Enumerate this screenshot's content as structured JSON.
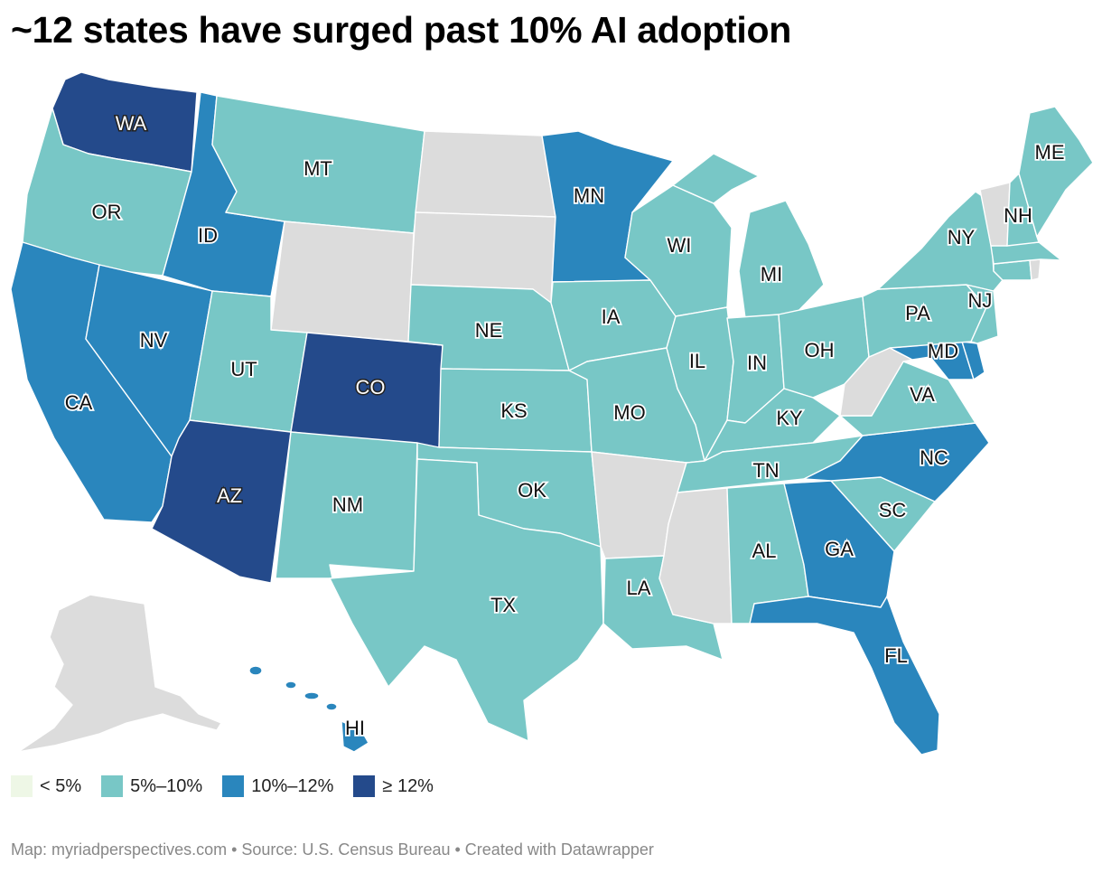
{
  "title": "~12 states have surged past 10% AI adoption",
  "colors": {
    "lt5": "#eef7e6",
    "b5_10": "#78c7c6",
    "b10_12": "#2a86bd",
    "ge12": "#244a8b",
    "nodata": "#dcdcdc"
  },
  "legend": [
    {
      "label": "< 5%",
      "color": "#eef7e6"
    },
    {
      "label": "5%–10%",
      "color": "#78c7c6"
    },
    {
      "label": "10%–12%",
      "color": "#2a86bd"
    },
    {
      "label": "≥ 12%",
      "color": "#244a8b"
    }
  ],
  "states": [
    {
      "abbr": "WA",
      "bin": "ge12"
    },
    {
      "abbr": "OR",
      "bin": "b5_10"
    },
    {
      "abbr": "CA",
      "bin": "b10_12"
    },
    {
      "abbr": "NV",
      "bin": "b10_12"
    },
    {
      "abbr": "ID",
      "bin": "b10_12"
    },
    {
      "abbr": "MT",
      "bin": "b5_10"
    },
    {
      "abbr": "WY",
      "bin": "nodata"
    },
    {
      "abbr": "UT",
      "bin": "b5_10"
    },
    {
      "abbr": "AZ",
      "bin": "ge12"
    },
    {
      "abbr": "CO",
      "bin": "ge12"
    },
    {
      "abbr": "NM",
      "bin": "b5_10"
    },
    {
      "abbr": "ND",
      "bin": "nodata"
    },
    {
      "abbr": "SD",
      "bin": "nodata"
    },
    {
      "abbr": "NE",
      "bin": "b5_10"
    },
    {
      "abbr": "KS",
      "bin": "b5_10"
    },
    {
      "abbr": "OK",
      "bin": "b5_10"
    },
    {
      "abbr": "TX",
      "bin": "b5_10"
    },
    {
      "abbr": "MN",
      "bin": "b10_12"
    },
    {
      "abbr": "IA",
      "bin": "b5_10"
    },
    {
      "abbr": "MO",
      "bin": "b5_10"
    },
    {
      "abbr": "AR",
      "bin": "nodata"
    },
    {
      "abbr": "LA",
      "bin": "b5_10"
    },
    {
      "abbr": "WI",
      "bin": "b5_10"
    },
    {
      "abbr": "IL",
      "bin": "b5_10"
    },
    {
      "abbr": "MI",
      "bin": "b5_10"
    },
    {
      "abbr": "IN",
      "bin": "b5_10"
    },
    {
      "abbr": "OH",
      "bin": "b5_10"
    },
    {
      "abbr": "KY",
      "bin": "b5_10"
    },
    {
      "abbr": "TN",
      "bin": "b5_10"
    },
    {
      "abbr": "MS",
      "bin": "nodata"
    },
    {
      "abbr": "AL",
      "bin": "b5_10"
    },
    {
      "abbr": "GA",
      "bin": "b10_12"
    },
    {
      "abbr": "FL",
      "bin": "b10_12"
    },
    {
      "abbr": "SC",
      "bin": "b5_10"
    },
    {
      "abbr": "NC",
      "bin": "b10_12"
    },
    {
      "abbr": "VA",
      "bin": "b5_10"
    },
    {
      "abbr": "WV",
      "bin": "nodata"
    },
    {
      "abbr": "MD",
      "bin": "b10_12"
    },
    {
      "abbr": "DE",
      "bin": "b10_12"
    },
    {
      "abbr": "PA",
      "bin": "b5_10"
    },
    {
      "abbr": "NJ",
      "bin": "b5_10"
    },
    {
      "abbr": "NY",
      "bin": "b5_10"
    },
    {
      "abbr": "CT",
      "bin": "b5_10"
    },
    {
      "abbr": "RI",
      "bin": "nodata"
    },
    {
      "abbr": "MA",
      "bin": "b5_10"
    },
    {
      "abbr": "VT",
      "bin": "nodata"
    },
    {
      "abbr": "NH",
      "bin": "b5_10"
    },
    {
      "abbr": "ME",
      "bin": "b5_10"
    },
    {
      "abbr": "AK",
      "bin": "nodata"
    },
    {
      "abbr": "HI",
      "bin": "b10_12"
    }
  ],
  "labels": {
    "WA": "WA",
    "OR": "OR",
    "CA": "CA",
    "NV": "NV",
    "ID": "ID",
    "MT": "MT",
    "UT": "UT",
    "AZ": "AZ",
    "CO": "CO",
    "NM": "NM",
    "NE": "NE",
    "KS": "KS",
    "OK": "OK",
    "TX": "TX",
    "MN": "MN",
    "IA": "IA",
    "MO": "MO",
    "LA": "LA",
    "WI": "WI",
    "IL": "IL",
    "MI": "MI",
    "IN": "IN",
    "OH": "OH",
    "KY": "KY",
    "TN": "TN",
    "AL": "AL",
    "GA": "GA",
    "FL": "FL",
    "SC": "SC",
    "NC": "NC",
    "VA": "VA",
    "MD": "MD",
    "PA": "PA",
    "NJ": "NJ",
    "NY": "NY",
    "NH": "NH",
    "ME": "ME",
    "HI": "HI"
  },
  "footer": "Map: myriadperspectives.com • Source: U.S. Census Bureau • Created with Datawrapper"
}
